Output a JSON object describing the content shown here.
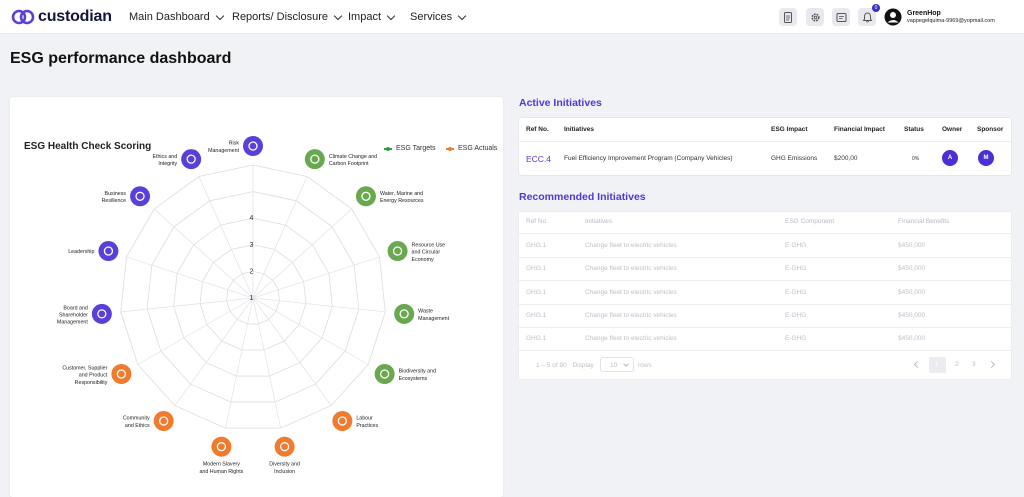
{
  "nav": {
    "brand": "custodian",
    "menus": [
      "Main Dashboard",
      "Reports/ Disclosure",
      "Impact",
      "Services"
    ],
    "notification_count": "0",
    "user": {
      "name": "GreenHop",
      "email": "vappegelquima-9969@yopmail.com"
    }
  },
  "page": {
    "title": "ESG performance dashboard"
  },
  "health_check": {
    "title": "ESG Health Check Scoring",
    "legend": {
      "targets": "ESG Targets",
      "actuals": "ESG Actuals"
    },
    "targets_color": "#2e9e3e",
    "actuals_color": "#f07b2e",
    "scale_ticks": [
      "1",
      "2",
      "3",
      "4"
    ],
    "categories": [
      {
        "label": [
          "Risk",
          "Management"
        ],
        "color": "#5b3fd8",
        "icon": "gear-icon"
      },
      {
        "label": [
          "Climate Change and",
          "Carbon Footprint"
        ],
        "color": "#6aa84f",
        "icon": "factory-icon"
      },
      {
        "label": [
          "Water, Marine and",
          "Energy Resources"
        ],
        "color": "#6aa84f",
        "icon": "energy-icon"
      },
      {
        "label": [
          "Resource Use",
          "and Circular",
          "Economy"
        ],
        "color": "#6aa84f",
        "icon": "leaf-drop-icon"
      },
      {
        "label": [
          "Waste",
          "Management"
        ],
        "color": "#6aa84f",
        "icon": "waste-icon"
      },
      {
        "label": [
          "Biodiversity and",
          "Ecosystems"
        ],
        "color": "#6aa84f",
        "icon": "network-icon"
      },
      {
        "label": [
          "Labour",
          "Practices"
        ],
        "color": "#f07b2e",
        "icon": "worker-icon"
      },
      {
        "label": [
          "Diversity and",
          "Inclusion"
        ],
        "color": "#f07b2e",
        "icon": "diversity-icon"
      },
      {
        "label": [
          "Modern Slavery",
          "and Human Rights"
        ],
        "color": "#f07b2e",
        "icon": "rights-icon"
      },
      {
        "label": [
          "Community",
          "and Ethics"
        ],
        "color": "#f07b2e",
        "icon": "community-icon"
      },
      {
        "label": [
          "Customer, Supplier",
          "and Product",
          "Responsibility"
        ],
        "color": "#f07b2e",
        "icon": "product-icon"
      },
      {
        "label": [
          "Board and",
          "Shareholder",
          "Management"
        ],
        "color": "#5b3fd8",
        "icon": "board-icon"
      },
      {
        "label": [
          "Leadership"
        ],
        "color": "#5b3fd8",
        "icon": "leadership-icon"
      },
      {
        "label": [
          "Business",
          "Resilience"
        ],
        "color": "#5b3fd8",
        "icon": "resilience-icon"
      },
      {
        "label": [
          "Ethics and",
          "Integrity"
        ],
        "color": "#5b3fd8",
        "icon": "ethics-icon"
      }
    ]
  },
  "active": {
    "title": "Active Initiatives",
    "headers": [
      "Ref No.",
      "Initiatives",
      "ESG Impact",
      "Financial Impact",
      "Status",
      "Owner",
      "Sponsor"
    ],
    "row": {
      "ref": "ECC.4",
      "initiative": "Fuel Efficiency Improvement Program (Company Vehicles)",
      "impact": "GHG Emissions",
      "financial": "$200,00",
      "status": "0%",
      "owner": "A",
      "sponsor": "M"
    }
  },
  "recommended": {
    "title": "Recommended Initiatives",
    "headers": [
      "Ref No.",
      "Initiatives",
      "ESG Component",
      "Financial Benefits"
    ],
    "rows": [
      {
        "ref": "GHG.1",
        "initiative": "Change fleet to electric vehicles",
        "component": "E-GHG",
        "benefit": "$450,000"
      },
      {
        "ref": "GHG.1",
        "initiative": "Change fleet to electric vehicles",
        "component": "E-GHG",
        "benefit": "$450,000"
      },
      {
        "ref": "GHG.1",
        "initiative": "Change fleet to electric vehicles",
        "component": "E-GHG",
        "benefit": "$450,000"
      },
      {
        "ref": "GHG.1",
        "initiative": "Change fleet to electric vehicles",
        "component": "E-GHG",
        "benefit": "$450,000"
      },
      {
        "ref": "GHG.1",
        "initiative": "Change fleet to electric vehicles",
        "component": "E-GHG",
        "benefit": "$450,000"
      }
    ],
    "pagination": {
      "summary": "1 – 5 of 90 · Display",
      "per_page": "10",
      "rows_label": "rows",
      "pages": [
        "1",
        "2",
        "3"
      ]
    }
  }
}
